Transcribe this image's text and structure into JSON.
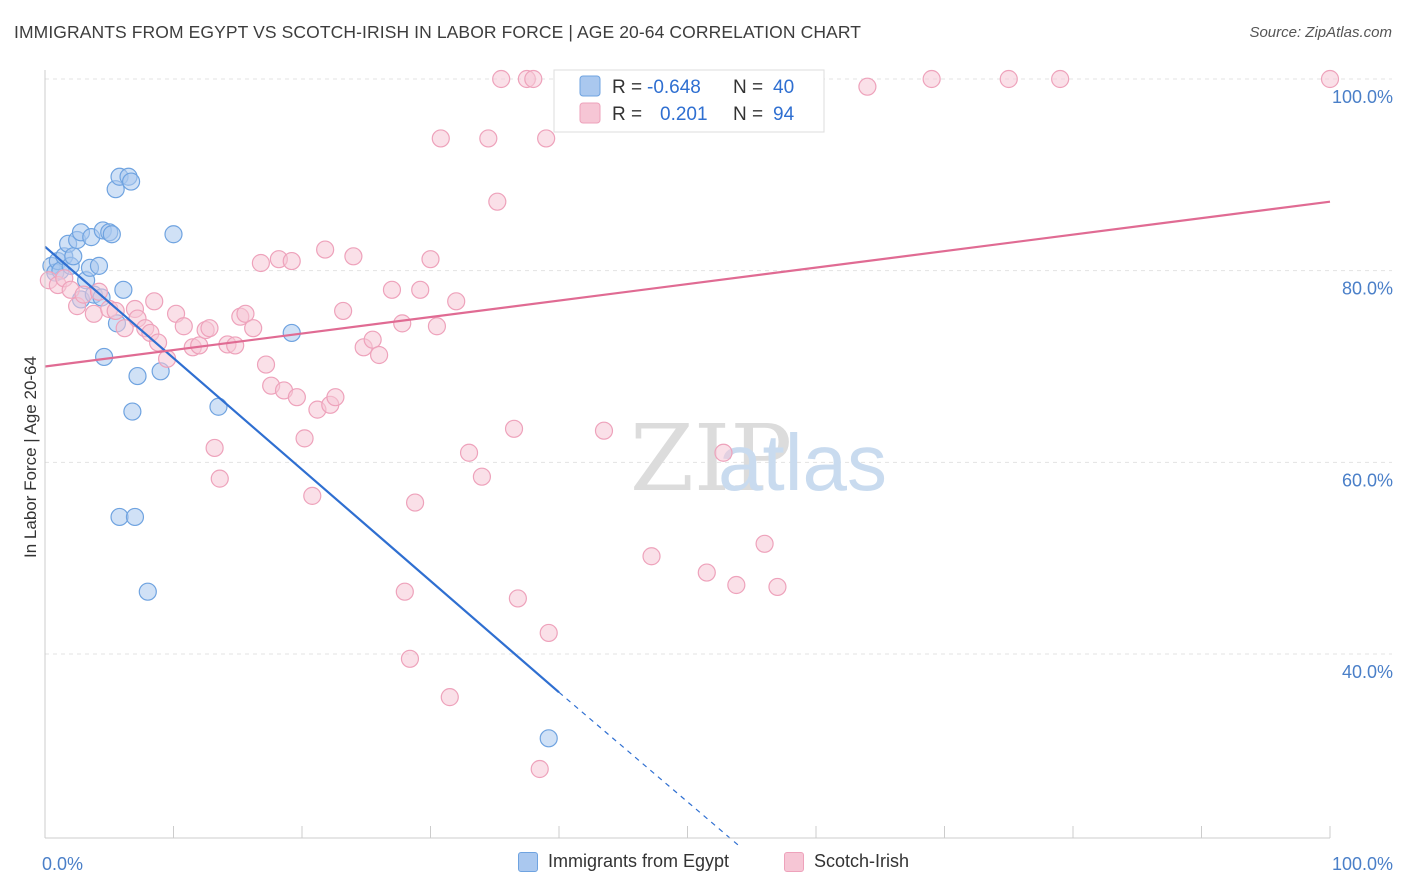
{
  "header": {
    "title": "IMMIGRANTS FROM EGYPT VS SCOTCH-IRISH IN LABOR FORCE | AGE 20-64 CORRELATION CHART",
    "source": "Source: ZipAtlas.com"
  },
  "watermark": {
    "zip": "ZIP",
    "atlas": "atlas"
  },
  "stats_legend": {
    "rows": [
      {
        "r_label": "R =",
        "r_value": "-0.648",
        "n_label": "N =",
        "n_value": "40"
      },
      {
        "r_label": "R =",
        "r_value": "0.201",
        "n_label": "N =",
        "n_value": "94"
      }
    ]
  },
  "chart_data": {
    "type": "scatter",
    "title": "IMMIGRANTS FROM EGYPT VS SCOTCH-IRISH IN LABOR FORCE | AGE 20-64 CORRELATION CHART",
    "xlabel": "",
    "ylabel": "In Labor Force | Age 20-64",
    "xlim": [
      0,
      100
    ],
    "ylim": [
      20,
      102
    ],
    "x_tick_labels": [
      "0.0%",
      "100.0%"
    ],
    "y_ticks": [
      40,
      60,
      80,
      100
    ],
    "y_tick_labels": [
      "40.0%",
      "60.0%",
      "80.0%",
      "100.0%"
    ],
    "grid": true,
    "legend_position": "bottom-center",
    "series": [
      {
        "name": "Immigrants from Egypt",
        "color": "#6fa3e0",
        "fill": "#aac8ef",
        "trend_color": "#2f6fd1",
        "r": -0.648,
        "n": 40,
        "points": [
          [
            0.5,
            80.5
          ],
          [
            0.8,
            79.8
          ],
          [
            1.0,
            81.0
          ],
          [
            1.2,
            80.0
          ],
          [
            1.5,
            81.5
          ],
          [
            1.8,
            82.8
          ],
          [
            2.0,
            80.5
          ],
          [
            2.2,
            81.5
          ],
          [
            2.5,
            83.2
          ],
          [
            2.8,
            84.0
          ],
          [
            2.8,
            77.0
          ],
          [
            3.2,
            79.0
          ],
          [
            3.5,
            80.3
          ],
          [
            3.6,
            83.5
          ],
          [
            3.8,
            77.5
          ],
          [
            4.2,
            80.5
          ],
          [
            4.4,
            77.2
          ],
          [
            4.5,
            84.2
          ],
          [
            4.6,
            71.0
          ],
          [
            5.0,
            84.0
          ],
          [
            5.2,
            83.8
          ],
          [
            5.5,
            88.5
          ],
          [
            5.6,
            74.5
          ],
          [
            5.8,
            54.3
          ],
          [
            5.8,
            89.8
          ],
          [
            6.1,
            78.0
          ],
          [
            6.5,
            89.8
          ],
          [
            6.7,
            89.3
          ],
          [
            6.8,
            65.3
          ],
          [
            7.0,
            54.3
          ],
          [
            7.2,
            69.0
          ],
          [
            8.0,
            46.5
          ],
          [
            9.0,
            69.5
          ],
          [
            10.0,
            83.8
          ],
          [
            13.5,
            65.8
          ],
          [
            19.2,
            73.5
          ],
          [
            39.2,
            31.2
          ]
        ],
        "trend": {
          "x0": 0.0,
          "y0": 82.5,
          "x1": 40.0,
          "y1": 36.0,
          "dash_x1": 54.0,
          "dash_y1": 20.0
        }
      },
      {
        "name": "Scotch-Irish",
        "color": "#eea2bb",
        "fill": "#f6c6d5",
        "trend_color": "#e06b93",
        "r": 0.201,
        "n": 94,
        "points": [
          [
            0.3,
            79.0
          ],
          [
            1.0,
            78.5
          ],
          [
            1.5,
            79.2
          ],
          [
            2.0,
            78.0
          ],
          [
            2.5,
            76.3
          ],
          [
            3.0,
            77.5
          ],
          [
            3.8,
            75.5
          ],
          [
            4.2,
            77.8
          ],
          [
            5.0,
            76.0
          ],
          [
            5.5,
            75.8
          ],
          [
            6.2,
            74.0
          ],
          [
            7.0,
            76.0
          ],
          [
            7.2,
            75.0
          ],
          [
            7.8,
            74.0
          ],
          [
            8.2,
            73.5
          ],
          [
            8.5,
            76.8
          ],
          [
            8.8,
            72.5
          ],
          [
            9.5,
            70.8
          ],
          [
            10.2,
            75.5
          ],
          [
            10.8,
            74.2
          ],
          [
            11.5,
            72.0
          ],
          [
            12.0,
            72.2
          ],
          [
            12.5,
            73.8
          ],
          [
            12.8,
            74.0
          ],
          [
            13.2,
            61.5
          ],
          [
            13.6,
            58.3
          ],
          [
            14.2,
            72.3
          ],
          [
            14.8,
            72.2
          ],
          [
            15.2,
            75.2
          ],
          [
            15.6,
            75.5
          ],
          [
            16.2,
            74.0
          ],
          [
            16.8,
            80.8
          ],
          [
            17.2,
            70.2
          ],
          [
            17.6,
            68.0
          ],
          [
            18.2,
            81.2
          ],
          [
            18.6,
            67.5
          ],
          [
            19.2,
            81.0
          ],
          [
            19.6,
            66.8
          ],
          [
            20.2,
            62.5
          ],
          [
            20.8,
            56.5
          ],
          [
            21.2,
            65.5
          ],
          [
            21.8,
            82.2
          ],
          [
            22.2,
            66.0
          ],
          [
            22.6,
            66.8
          ],
          [
            23.2,
            75.8
          ],
          [
            24.0,
            81.5
          ],
          [
            24.8,
            72.0
          ],
          [
            25.5,
            72.8
          ],
          [
            26.0,
            71.2
          ],
          [
            27.0,
            78.0
          ],
          [
            27.8,
            74.5
          ],
          [
            28.0,
            46.5
          ],
          [
            28.4,
            39.5
          ],
          [
            28.8,
            55.8
          ],
          [
            29.2,
            78.0
          ],
          [
            30.0,
            81.2
          ],
          [
            30.5,
            74.2
          ],
          [
            30.8,
            93.8
          ],
          [
            31.5,
            35.5
          ],
          [
            32.0,
            76.8
          ],
          [
            33.0,
            61.0
          ],
          [
            34.0,
            58.5
          ],
          [
            34.5,
            93.8
          ],
          [
            35.2,
            87.2
          ],
          [
            35.5,
            100.0
          ],
          [
            36.5,
            63.5
          ],
          [
            36.8,
            45.8
          ],
          [
            37.5,
            100.0
          ],
          [
            38.0,
            100.0
          ],
          [
            38.5,
            28.0
          ],
          [
            39.0,
            93.8
          ],
          [
            39.2,
            42.2
          ],
          [
            40.5,
            100.0
          ],
          [
            41.5,
            100.0
          ],
          [
            42.5,
            100.0
          ],
          [
            43.5,
            63.3
          ],
          [
            44.5,
            100.0
          ],
          [
            47.2,
            50.2
          ],
          [
            49.0,
            100.0
          ],
          [
            50.5,
            100.0
          ],
          [
            51.5,
            48.5
          ],
          [
            52.8,
            61.0
          ],
          [
            53.8,
            47.2
          ],
          [
            56.0,
            51.5
          ],
          [
            57.0,
            47.0
          ],
          [
            64.0,
            99.2
          ],
          [
            69.0,
            100.0
          ],
          [
            75.0,
            100.0
          ],
          [
            79.0,
            100.0
          ],
          [
            100.0,
            100.0
          ]
        ],
        "trend": {
          "x0": 0.0,
          "y0": 70.0,
          "x1": 100.0,
          "y1": 87.2
        }
      }
    ]
  }
}
